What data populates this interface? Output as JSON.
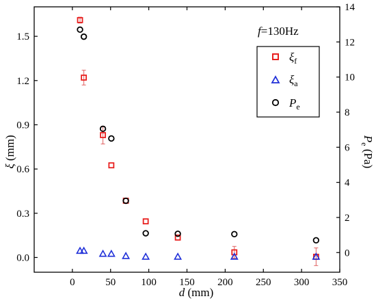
{
  "chart_data": {
    "type": "scatter",
    "annotation": {
      "prefix": "f",
      "value": "=130Hz"
    },
    "x_axis": {
      "label_var": "d",
      "label_unit": " (mm)",
      "range": [
        -50,
        350
      ],
      "ticks": [
        0,
        50,
        100,
        150,
        200,
        250,
        300,
        350
      ]
    },
    "y_left": {
      "label_var": "ξ",
      "label_unit": " (mm)",
      "range": [
        -0.1,
        1.7
      ],
      "ticks": [
        "0.0",
        "0.3",
        "0.6",
        "0.9",
        "1.2",
        "1.5"
      ]
    },
    "y_right": {
      "label_var": "P",
      "label_sub": "e",
      "label_unit": " (Pa)",
      "range": [
        -1.12,
        14
      ],
      "ticks": [
        0,
        2,
        4,
        6,
        8,
        10,
        12,
        14
      ]
    },
    "series": [
      {
        "name": "ξ",
        "name_sub": "f",
        "marker": "square",
        "color": "#e8201f",
        "axis": "left",
        "points": [
          {
            "x": 10,
            "y": 1.61,
            "err": 0.02
          },
          {
            "x": 15,
            "y": 1.22,
            "err": 0.05
          },
          {
            "x": 40,
            "y": 0.83,
            "err": 0.06
          },
          {
            "x": 51,
            "y": 0.625,
            "err": 0
          },
          {
            "x": 70,
            "y": 0.385,
            "err": 0
          },
          {
            "x": 96,
            "y": 0.245,
            "err": 0
          },
          {
            "x": 138,
            "y": 0.135,
            "err": 0
          },
          {
            "x": 212,
            "y": 0.035,
            "err": 0.04
          },
          {
            "x": 319,
            "y": 0.005,
            "err": 0.06
          }
        ]
      },
      {
        "name": "ξ",
        "name_sub": "a",
        "marker": "triangle",
        "color": "#1f2fd8",
        "axis": "left",
        "points": [
          {
            "x": 10,
            "y": 0.045
          },
          {
            "x": 15,
            "y": 0.045
          },
          {
            "x": 40,
            "y": 0.025
          },
          {
            "x": 51,
            "y": 0.025
          },
          {
            "x": 70,
            "y": 0.01
          },
          {
            "x": 96,
            "y": 0.005
          },
          {
            "x": 138,
            "y": 0.005
          },
          {
            "x": 212,
            "y": 0.005
          },
          {
            "x": 319,
            "y": 0.005
          }
        ]
      },
      {
        "name": "P",
        "name_sub": "e",
        "marker": "circle",
        "color": "#000000",
        "axis": "right",
        "points": [
          {
            "x": 10,
            "y": 12.7
          },
          {
            "x": 15,
            "y": 12.3
          },
          {
            "x": 40,
            "y": 7.05
          },
          {
            "x": 51,
            "y": 6.5
          },
          {
            "x": 70,
            "y": 2.95
          },
          {
            "x": 96,
            "y": 1.1
          },
          {
            "x": 138,
            "y": 1.07
          },
          {
            "x": 212,
            "y": 1.05
          },
          {
            "x": 319,
            "y": 0.7
          }
        ]
      }
    ],
    "grid": false,
    "legend_position": "top-right"
  }
}
